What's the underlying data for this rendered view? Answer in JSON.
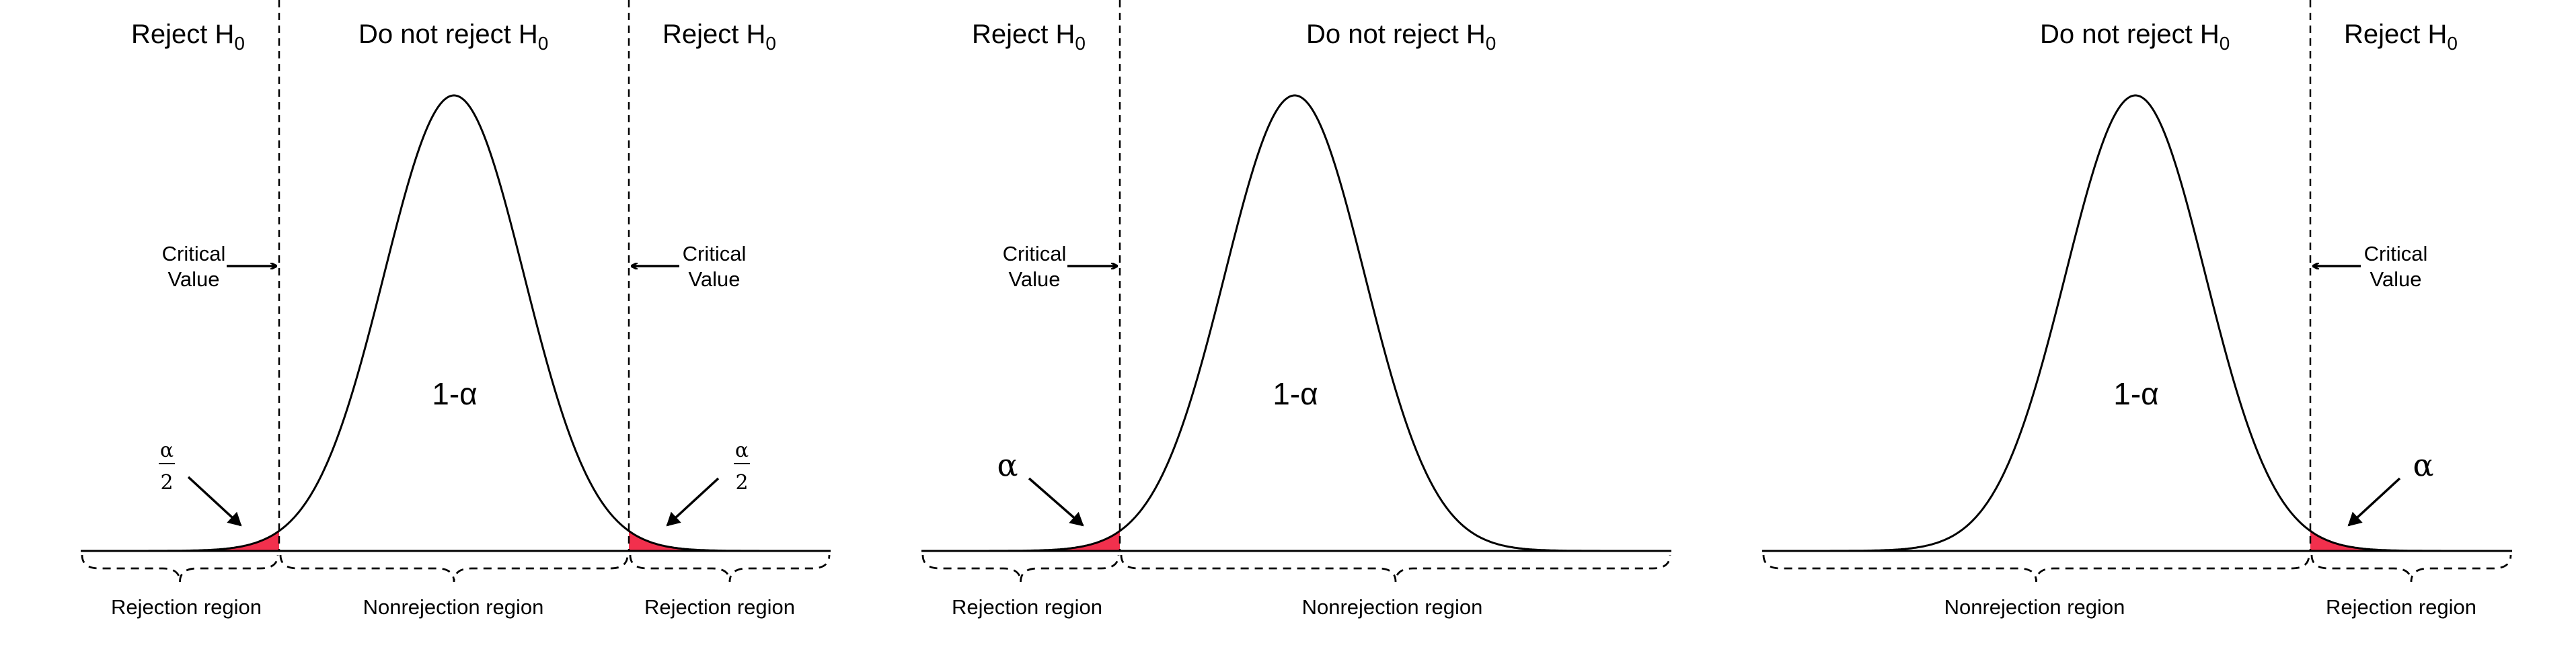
{
  "colors": {
    "rejection_fill": "#f2304d",
    "line": "#000000",
    "background": "#ffffff"
  },
  "panels": [
    {
      "kind": "two-tailed",
      "header_left": {
        "text": "Reject H",
        "sub": "0"
      },
      "header_mid": {
        "text": "Do not reject H",
        "sub": "0"
      },
      "header_right": {
        "text": "Reject H",
        "sub": "0"
      },
      "critical_left": [
        "Critical",
        "Value"
      ],
      "critical_right": [
        "Critical",
        "Value"
      ],
      "center_label": "1-α",
      "tail_left_label": {
        "num": "α",
        "den": "2"
      },
      "tail_right_label": {
        "num": "α",
        "den": "2"
      },
      "region_left": "Rejection region",
      "region_mid": "Nonrejection region",
      "region_right": "Rejection region"
    },
    {
      "kind": "left-tailed",
      "header_left": {
        "text": "Reject H",
        "sub": "0"
      },
      "header_mid": {
        "text": "Do not reject H",
        "sub": "0"
      },
      "critical_left": [
        "Critical",
        "Value"
      ],
      "center_label": "1-α",
      "tail_left_label": "α",
      "region_left": "Rejection region",
      "region_mid": "Nonrejection region"
    },
    {
      "kind": "right-tailed",
      "header_mid": {
        "text": "Do not reject H",
        "sub": "0"
      },
      "header_right": {
        "text": "Reject H",
        "sub": "0"
      },
      "critical_right": [
        "Critical",
        "Value"
      ],
      "center_label": "1-α",
      "tail_right_label": "α",
      "region_mid": "Nonrejection region",
      "region_right": "Rejection region"
    }
  ]
}
